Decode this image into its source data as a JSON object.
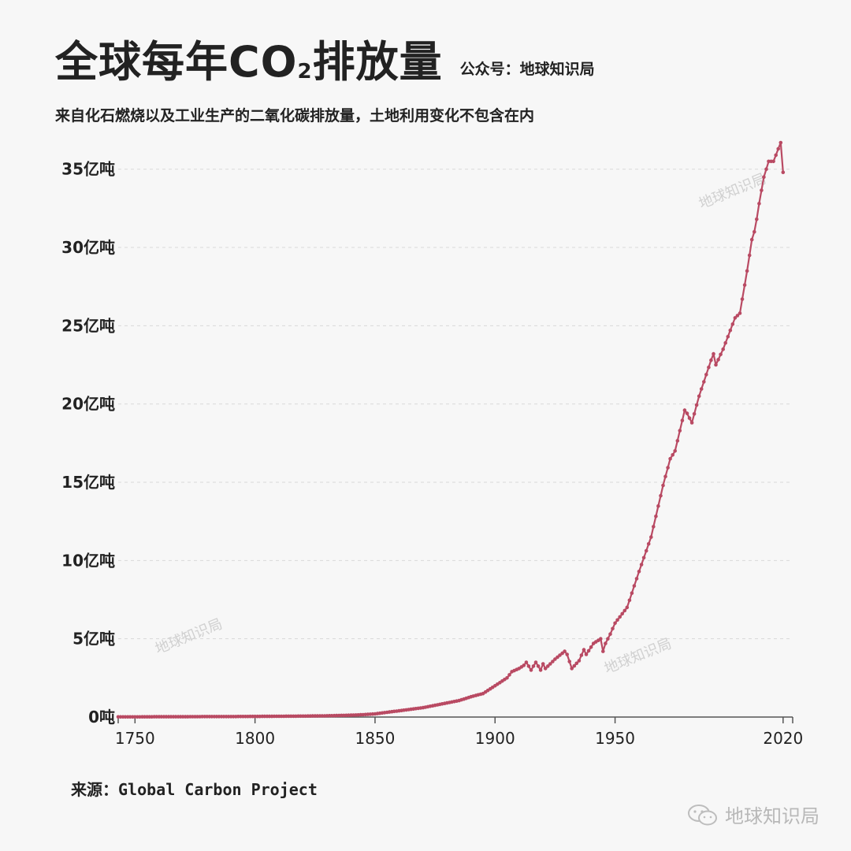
{
  "header": {
    "title_main": "全球每年CO",
    "title_sub": "2",
    "title_tail": "排放量",
    "account": "公众号：地球知识局",
    "subtitle": "来自化石燃烧以及工业生产的二氧化碳排放量，土地利用变化不包含在内"
  },
  "source": "来源：Global Carbon Project",
  "watermark": "地球知识局",
  "footer_brand": "地球知识局",
  "colors": {
    "line": "#b94a63",
    "grid": "#d9d9d9",
    "axis": "#555555"
  },
  "chart_data": {
    "type": "line",
    "title": "全球每年CO2排放量",
    "xlabel": "",
    "ylabel": "",
    "xlim": [
      1743,
      2024
    ],
    "ylim": [
      0,
      37
    ],
    "yticks": [
      0,
      5,
      10,
      15,
      20,
      25,
      30,
      35
    ],
    "ytick_labels": [
      "0吨",
      "5亿吨",
      "10亿吨",
      "15亿吨",
      "20亿吨",
      "25亿吨",
      "30亿吨",
      "35亿吨"
    ],
    "xticks": [
      1750,
      1800,
      1850,
      1900,
      1950,
      2020
    ],
    "xtick_labels": [
      "1750",
      "1800",
      "1850",
      "1900",
      "1950",
      "2020"
    ],
    "unit": "亿吨",
    "series": [
      {
        "name": "CO2排放量",
        "x": [
          1743,
          1750,
          1760,
          1770,
          1780,
          1790,
          1800,
          1810,
          1820,
          1830,
          1840,
          1845,
          1850,
          1855,
          1860,
          1865,
          1870,
          1875,
          1880,
          1885,
          1890,
          1895,
          1900,
          1905,
          1907,
          1910,
          1912,
          1913,
          1915,
          1917,
          1919,
          1920,
          1921,
          1925,
          1929,
          1930,
          1932,
          1935,
          1937,
          1938,
          1941,
          1944,
          1945,
          1946,
          1948,
          1950,
          1955,
          1960,
          1965,
          1970,
          1973,
          1975,
          1979,
          1980,
          1982,
          1985,
          1990,
          1991,
          1992,
          1995,
          2000,
          2002,
          2005,
          2007,
          2008,
          2009,
          2010,
          2012,
          2014,
          2015,
          2016,
          2019,
          2020
        ],
        "y": [
          0.01,
          0.01,
          0.02,
          0.02,
          0.03,
          0.03,
          0.04,
          0.05,
          0.06,
          0.08,
          0.12,
          0.15,
          0.2,
          0.3,
          0.4,
          0.5,
          0.6,
          0.75,
          0.9,
          1.05,
          1.3,
          1.5,
          2.0,
          2.5,
          2.9,
          3.1,
          3.3,
          3.5,
          3.0,
          3.5,
          3.0,
          3.4,
          3.1,
          3.7,
          4.2,
          4.0,
          3.1,
          3.6,
          4.3,
          4.0,
          4.7,
          5.0,
          4.2,
          4.7,
          5.3,
          6.0,
          7.0,
          9.3,
          11.5,
          14.8,
          16.5,
          17.0,
          19.6,
          19.4,
          18.8,
          20.5,
          22.8,
          23.2,
          22.5,
          23.5,
          25.5,
          25.8,
          28.5,
          30.5,
          31.0,
          31.8,
          32.8,
          34.5,
          35.5,
          35.5,
          35.5,
          36.7,
          34.8
        ]
      }
    ]
  }
}
